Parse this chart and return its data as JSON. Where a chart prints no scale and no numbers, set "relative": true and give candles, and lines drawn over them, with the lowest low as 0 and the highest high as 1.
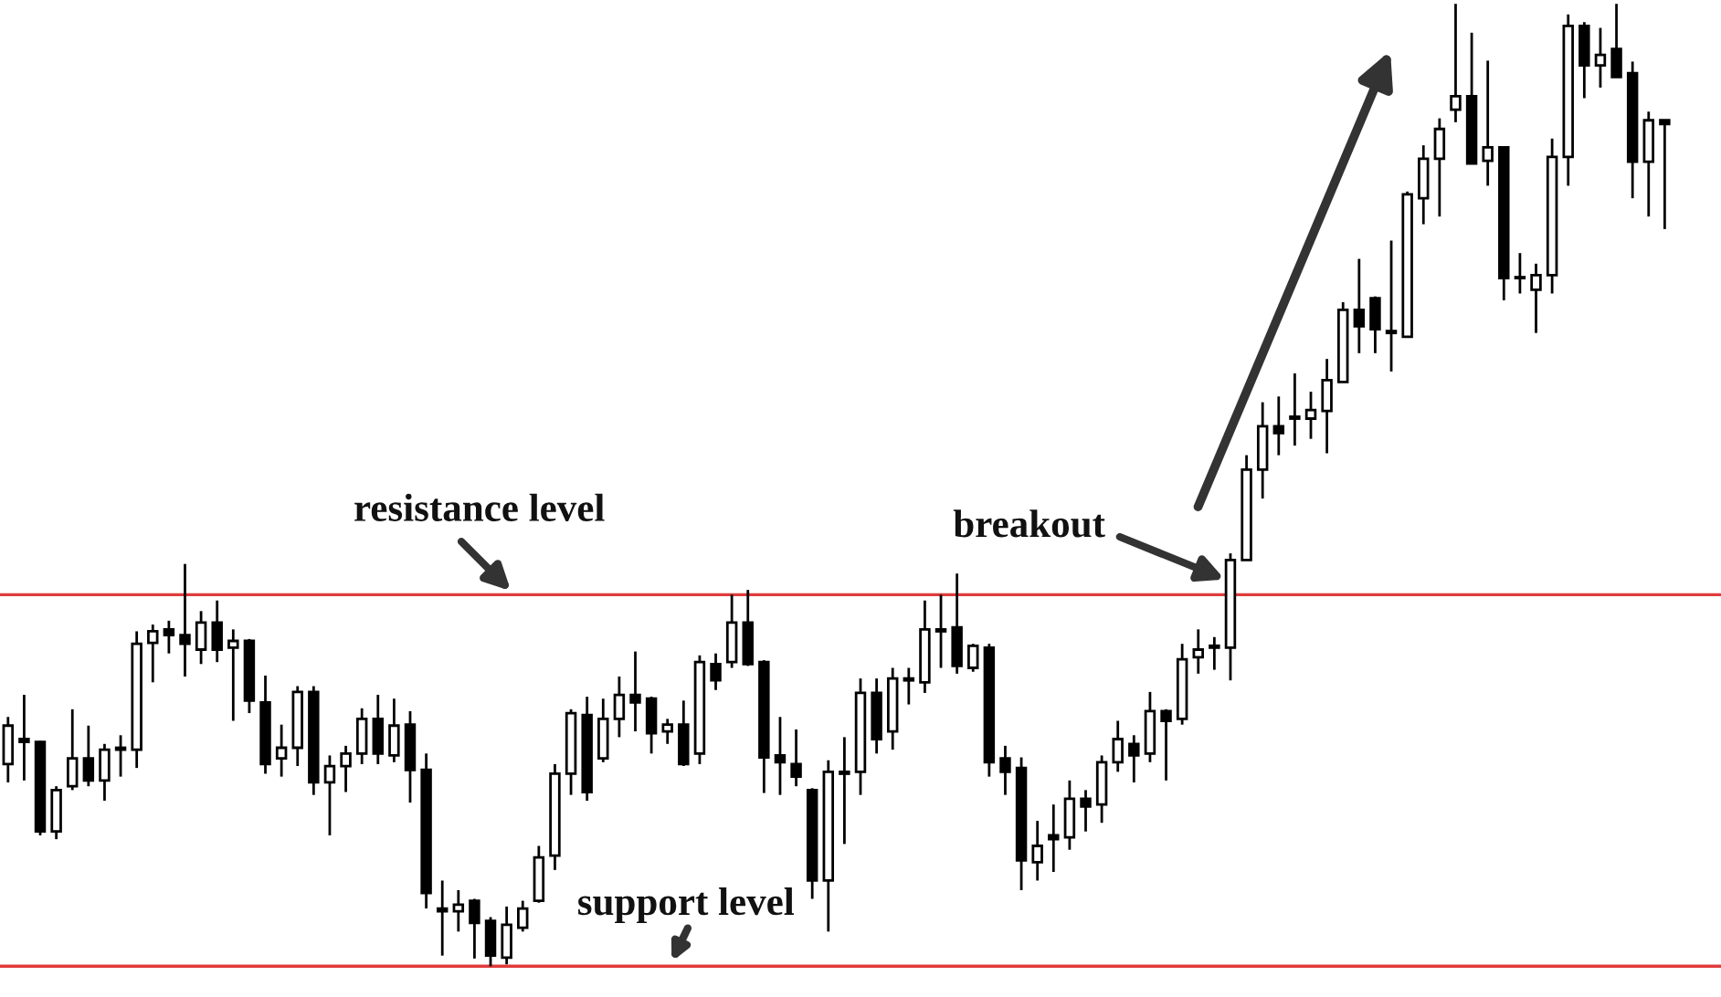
{
  "chart_data": {
    "type": "candlestick",
    "relative": true,
    "categories": [
      null,
      null,
      null,
      null,
      null,
      null,
      null,
      null,
      null,
      null,
      null,
      null,
      null,
      null,
      null,
      null,
      null,
      null,
      null,
      null,
      null,
      null,
      null,
      null,
      null,
      null,
      null,
      null,
      null,
      null,
      null,
      null,
      null,
      null,
      null,
      null,
      null,
      null,
      null,
      null,
      null,
      null,
      null,
      null,
      null,
      null,
      null,
      null,
      null,
      null,
      null,
      null,
      null,
      null,
      null,
      null,
      null,
      null,
      null,
      null,
      null,
      null,
      null,
      null,
      null,
      null,
      null,
      null,
      null,
      null,
      null,
      null,
      null,
      null,
      null,
      null,
      null,
      null,
      null,
      null,
      null,
      null,
      null,
      null,
      null,
      null,
      null,
      null,
      null,
      null,
      null,
      null,
      null,
      null,
      null,
      null,
      null,
      null,
      null,
      null,
      null,
      null,
      null,
      null
    ],
    "ohlc": [
      [
        0.21,
        0.259,
        0.191,
        0.25
      ],
      [
        0.236,
        0.282,
        0.193,
        0.233
      ],
      [
        0.233,
        0.234,
        0.136,
        0.14
      ],
      [
        0.14,
        0.187,
        0.132,
        0.183
      ],
      [
        0.187,
        0.267,
        0.183,
        0.216
      ],
      [
        0.216,
        0.25,
        0.187,
        0.193
      ],
      [
        0.193,
        0.231,
        0.172,
        0.225
      ],
      [
        0.225,
        0.24,
        0.197,
        0.227
      ],
      [
        0.225,
        0.348,
        0.206,
        0.335
      ],
      [
        0.336,
        0.355,
        0.295,
        0.348
      ],
      [
        0.35,
        0.359,
        0.325,
        0.344
      ],
      [
        0.344,
        0.418,
        0.301,
        0.335
      ],
      [
        0.329,
        0.369,
        0.314,
        0.357
      ],
      [
        0.357,
        0.38,
        0.316,
        0.329
      ],
      [
        0.331,
        0.35,
        0.255,
        0.338
      ],
      [
        0.338,
        0.34,
        0.263,
        0.276
      ],
      [
        0.274,
        0.302,
        0.2,
        0.21
      ],
      [
        0.216,
        0.251,
        0.197,
        0.227
      ],
      [
        0.227,
        0.291,
        0.208,
        0.285
      ],
      [
        0.285,
        0.291,
        0.178,
        0.191
      ],
      [
        0.191,
        0.219,
        0.136,
        0.208
      ],
      [
        0.208,
        0.229,
        0.181,
        0.221
      ],
      [
        0.221,
        0.268,
        0.21,
        0.257
      ],
      [
        0.257,
        0.282,
        0.21,
        0.221
      ],
      [
        0.219,
        0.278,
        0.212,
        0.25
      ],
      [
        0.251,
        0.265,
        0.17,
        0.204
      ],
      [
        0.204,
        0.221,
        0.06,
        0.076
      ],
      [
        0.06,
        0.089,
        0.011,
        0.057
      ],
      [
        0.057,
        0.079,
        0.036,
        0.064
      ],
      [
        0.068,
        0.07,
        0.008,
        0.045
      ],
      [
        0.047,
        0.051,
        0,
        0.011
      ],
      [
        0.009,
        0.062,
        0.002,
        0.043
      ],
      [
        0.04,
        0.068,
        0.036,
        0.06
      ],
      [
        0.068,
        0.125,
        0.066,
        0.113
      ],
      [
        0.115,
        0.21,
        0.1,
        0.2
      ],
      [
        0.2,
        0.267,
        0.178,
        0.263
      ],
      [
        0.261,
        0.28,
        0.172,
        0.181
      ],
      [
        0.216,
        0.278,
        0.212,
        0.257
      ],
      [
        0.257,
        0.301,
        0.238,
        0.282
      ],
      [
        0.282,
        0.327,
        0.244,
        0.274
      ],
      [
        0.278,
        0.28,
        0.221,
        0.242
      ],
      [
        0.244,
        0.257,
        0.231,
        0.251
      ],
      [
        0.251,
        0.276,
        0.208,
        0.21
      ],
      [
        0.221,
        0.323,
        0.21,
        0.316
      ],
      [
        0.314,
        0.325,
        0.287,
        0.297
      ],
      [
        0.316,
        0.386,
        0.31,
        0.357
      ],
      [
        0.357,
        0.391,
        0.312,
        0.314
      ],
      [
        0.316,
        0.318,
        0.18,
        0.217
      ],
      [
        0.219,
        0.259,
        0.178,
        0.212
      ],
      [
        0.21,
        0.246,
        0.187,
        0.197
      ],
      [
        0.183,
        0.185,
        0.07,
        0.089
      ],
      [
        0.089,
        0.214,
        0.036,
        0.202
      ],
      [
        0.202,
        0.238,
        0.127,
        0.2
      ],
      [
        0.202,
        0.299,
        0.178,
        0.284
      ],
      [
        0.284,
        0.299,
        0.221,
        0.236
      ],
      [
        0.244,
        0.31,
        0.225,
        0.299
      ],
      [
        0.299,
        0.31,
        0.272,
        0.297
      ],
      [
        0.295,
        0.38,
        0.284,
        0.35
      ],
      [
        0.348,
        0.386,
        0.31,
        0.35
      ],
      [
        0.352,
        0.408,
        0.304,
        0.312
      ],
      [
        0.31,
        0.335,
        0.306,
        0.333
      ],
      [
        0.331,
        0.335,
        0.197,
        0.212
      ],
      [
        0.216,
        0.229,
        0.178,
        0.202
      ],
      [
        0.206,
        0.217,
        0.079,
        0.11
      ],
      [
        0.108,
        0.151,
        0.089,
        0.125
      ],
      [
        0.136,
        0.168,
        0.098,
        0.132
      ],
      [
        0.134,
        0.193,
        0.121,
        0.174
      ],
      [
        0.174,
        0.183,
        0.14,
        0.166
      ],
      [
        0.168,
        0.219,
        0.149,
        0.212
      ],
      [
        0.212,
        0.255,
        0.202,
        0.236
      ],
      [
        0.231,
        0.24,
        0.191,
        0.219
      ],
      [
        0.221,
        0.285,
        0.212,
        0.265
      ],
      [
        0.265,
        0.267,
        0.193,
        0.255
      ],
      [
        0.257,
        0.335,
        0.251,
        0.319
      ],
      [
        0.321,
        0.35,
        0.304,
        0.329
      ],
      [
        0.333,
        0.342,
        0.308,
        0.331
      ],
      [
        0.331,
        0.429,
        0.297,
        0.422
      ],
      [
        0.422,
        0.531,
        0.422,
        0.516
      ],
      [
        0.516,
        0.586,
        0.486,
        0.561
      ],
      [
        0.561,
        0.592,
        0.531,
        0.554
      ],
      [
        0.571,
        0.616,
        0.541,
        0.569
      ],
      [
        0.569,
        0.597,
        0.548,
        0.578
      ],
      [
        0.577,
        0.631,
        0.533,
        0.609
      ],
      [
        0.607,
        0.69,
        0.607,
        0.682
      ],
      [
        0.682,
        0.735,
        0.637,
        0.665
      ],
      [
        0.694,
        0.696,
        0.637,
        0.662
      ],
      [
        0.66,
        0.754,
        0.618,
        0.658
      ],
      [
        0.654,
        0.805,
        0.654,
        0.802
      ],
      [
        0.798,
        0.853,
        0.771,
        0.839
      ],
      [
        0.839,
        0.881,
        0.779,
        0.87
      ],
      [
        0.89,
        1,
        0.877,
        0.904
      ],
      [
        0.904,
        0.97,
        0.834,
        0.834
      ],
      [
        0.837,
        0.941,
        0.811,
        0.851
      ],
      [
        0.851,
        0.851,
        0.692,
        0.715
      ],
      [
        0.716,
        0.741,
        0.699,
        0.715
      ],
      [
        0.703,
        0.73,
        0.658,
        0.718
      ],
      [
        0.718,
        0.86,
        0.699,
        0.841
      ],
      [
        0.841,
        0.989,
        0.811,
        0.977
      ],
      [
        0.977,
        0.981,
        0.902,
        0.936
      ],
      [
        0.936,
        0.975,
        0.913,
        0.947
      ],
      [
        0.953,
        1,
        0.924,
        0.924
      ],
      [
        0.928,
        0.94,
        0.798,
        0.836
      ],
      [
        0.836,
        0.888,
        0.779,
        0.879
      ],
      [
        0.879,
        0.879,
        0.766,
        0.875
      ]
    ],
    "ref_lines": [
      {
        "axis": "y",
        "value": 0.386,
        "label": "resistance level",
        "color": "#e03c3c"
      },
      {
        "axis": "y",
        "value": 0,
        "label": "support level",
        "color": "#e03c3c"
      }
    ],
    "annotations": [
      "breakout"
    ]
  }
}
